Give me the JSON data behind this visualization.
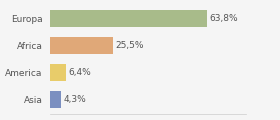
{
  "categories": [
    "Europa",
    "Africa",
    "America",
    "Asia"
  ],
  "values": [
    63.8,
    25.5,
    6.4,
    4.3
  ],
  "labels": [
    "63,8%",
    "25,5%",
    "6,4%",
    "4,3%"
  ],
  "colors": [
    "#a8bb8a",
    "#e0a878",
    "#e8cc6a",
    "#7b8fc0"
  ],
  "xlim": [
    0,
    80
  ],
  "background_color": "#f5f5f5",
  "bar_height": 0.62,
  "label_fontsize": 6.5,
  "category_fontsize": 6.5
}
